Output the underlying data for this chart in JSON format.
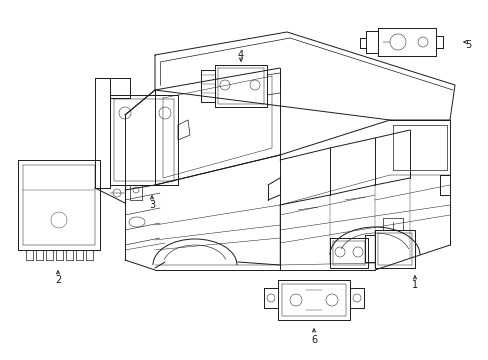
{
  "background_color": "#ffffff",
  "line_color": "#1a1a1a",
  "figsize": [
    4.89,
    3.6
  ],
  "dpi": 100,
  "lw": 0.7
}
